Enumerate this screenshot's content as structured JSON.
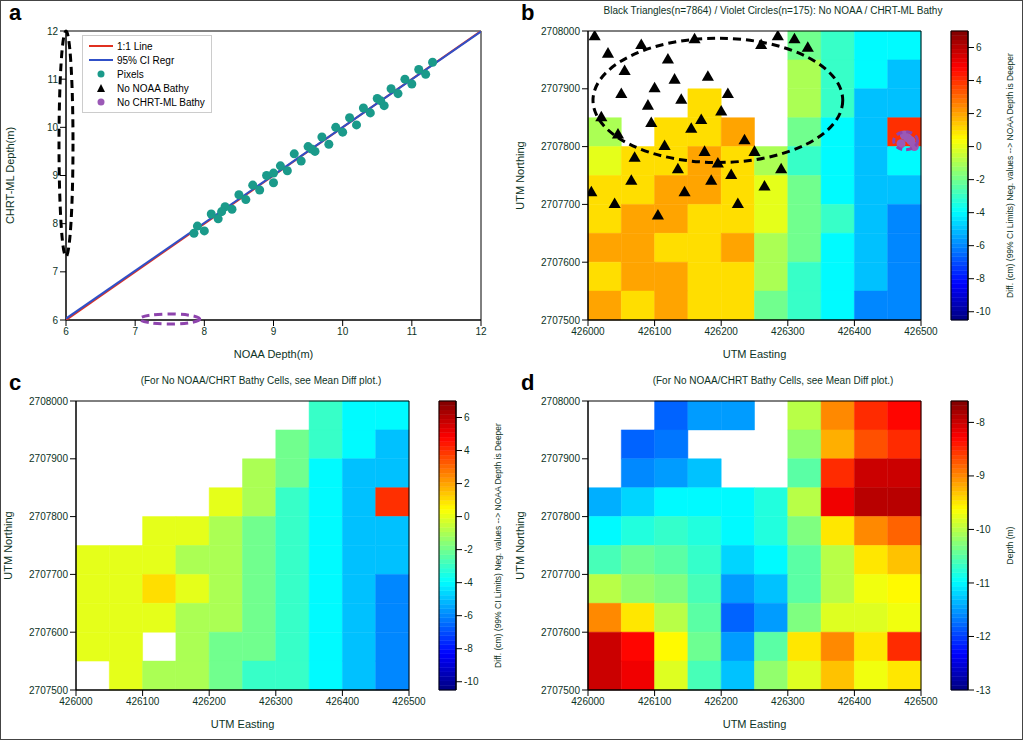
{
  "chart_data": [
    {
      "type": "scatter",
      "panel_label": "a",
      "x_label": "NOAA Depth(m)",
      "y_label": "CHRT-ML Depth(m)",
      "xlim": [
        6,
        12
      ],
      "ylim": [
        6,
        12
      ],
      "xticks": [
        6,
        7,
        8,
        9,
        10,
        11,
        12
      ],
      "yticks": [
        6,
        7,
        8,
        9,
        10,
        11,
        12
      ],
      "legend": "upper left",
      "series": [
        {
          "name": "1:1 Line",
          "type": "line",
          "color": "#e03020",
          "x": [
            6,
            12
          ],
          "values": [
            6,
            12
          ]
        },
        {
          "name": "95% CI Regr",
          "type": "line",
          "color": "#3050c8",
          "x": [
            6,
            12
          ],
          "values": [
            6.03,
            11.99
          ]
        },
        {
          "name": "Pixels",
          "type": "scatter",
          "marker": "circle",
          "color": "#1a9a8a",
          "x": [
            7.85,
            7.9,
            8.0,
            8.1,
            8.2,
            8.3,
            8.4,
            8.5,
            8.6,
            8.7,
            8.8,
            8.9,
            9.0,
            9.1,
            9.2,
            9.3,
            9.4,
            9.5,
            9.6,
            9.7,
            9.8,
            9.9,
            10.0,
            10.1,
            10.2,
            10.3,
            10.4,
            10.5,
            10.6,
            10.7,
            10.8,
            10.9,
            11.0,
            11.1,
            11.2,
            11.3,
            8.25,
            9.55,
            10.55,
            9.0
          ],
          "values": [
            7.8,
            7.95,
            7.85,
            8.2,
            8.1,
            8.35,
            8.3,
            8.6,
            8.5,
            8.8,
            8.7,
            9.0,
            8.85,
            9.2,
            9.1,
            9.45,
            9.3,
            9.6,
            9.5,
            9.8,
            9.65,
            10.0,
            9.9,
            10.2,
            10.05,
            10.4,
            10.3,
            10.6,
            10.45,
            10.8,
            10.7,
            11.0,
            10.9,
            11.2,
            11.1,
            11.35,
            8.25,
            9.55,
            10.55,
            9.05
          ]
        },
        {
          "name": "No NOAA Bathy",
          "type": "scatter",
          "marker": "triangle",
          "color": "#000000",
          "x": [],
          "values": []
        },
        {
          "name": "No CHRT-ML Bathy",
          "type": "scatter",
          "marker": "circle",
          "color": "#9b59b6",
          "x": [],
          "values": []
        }
      ]
    },
    {
      "type": "heatmap",
      "panel_label": "b",
      "title": "Black Triangles(n=7864) / Violet Circles(n=175): No NOAA / CHRT-ML Bathy",
      "x_label": "UTM Easting",
      "y_label": "UTM Northing",
      "xlim": [
        426000,
        426500
      ],
      "ylim": [
        2707500,
        2708000
      ],
      "xticks": [
        426000,
        426100,
        426200,
        426300,
        426400,
        426500
      ],
      "yticks": [
        2707500,
        2707600,
        2707700,
        2707800,
        2707900,
        2708000
      ],
      "cells": [
        [
          null,
          null,
          null,
          null,
          null,
          null,
          -2,
          -3,
          -4,
          -4
        ],
        [
          null,
          null,
          null,
          null,
          null,
          null,
          -1,
          -3,
          -4,
          -5
        ],
        [
          null,
          null,
          null,
          1,
          null,
          null,
          -1,
          -3,
          -5,
          -5
        ],
        [
          -1,
          null,
          1,
          1,
          2,
          null,
          -2,
          -4,
          -5,
          4
        ],
        [
          0,
          1,
          1,
          2,
          1,
          -1,
          -3,
          -4,
          -5,
          -4
        ],
        [
          1,
          1,
          2,
          2,
          1,
          0,
          -2,
          -4,
          -5,
          -5
        ],
        [
          1,
          2,
          2,
          1,
          1,
          0,
          -2,
          -3,
          -5,
          -6
        ],
        [
          2,
          2,
          1,
          1,
          2,
          -1,
          -2,
          -4,
          -5,
          -6
        ],
        [
          1,
          2,
          2,
          1,
          1,
          -1,
          -3,
          -4,
          -5,
          -6
        ],
        [
          2,
          1,
          2,
          1,
          1,
          -2,
          -3,
          -4,
          -6,
          -6
        ]
      ],
      "colorbar": {
        "label": "Diff. (cm) (99% CI Limits)  Neg. values --> NOAA Depth is Deeper",
        "range": [
          -10.5,
          7
        ],
        "ticks": [
          -10,
          -8,
          -6,
          -4,
          -2,
          0,
          2,
          4,
          6
        ]
      },
      "markers": [
        {
          "marker": "triangle",
          "color": "#000000",
          "x": [
            426010,
            426030,
            426055,
            426080,
            426100,
            426120,
            426140,
            426160,
            426180,
            426200,
            426020,
            426045,
            426070,
            426095,
            426115,
            426135,
            426155,
            426175,
            426195,
            426215,
            426235,
            426260,
            426285,
            426310,
            426330,
            426050,
            426090,
            426130,
            426170,
            426210,
            426250,
            426290,
            426005,
            426040,
            426065,
            426105,
            426145,
            426185,
            426225,
            426265
          ],
          "y": [
            2707990,
            2707960,
            2707930,
            2707975,
            2707900,
            2707950,
            2707880,
            2707985,
            2707920,
            2707860,
            2707850,
            2707820,
            2707780,
            2707840,
            2707800,
            2707760,
            2707830,
            2707790,
            2707770,
            2707750,
            2707810,
            2707975,
            2707990,
            2707985,
            2707970,
            2707890,
            2707870,
            2707915,
            2707845,
            2707890,
            2707790,
            2707760,
            2707720,
            2707700,
            2707740,
            2707680,
            2707720,
            2707740,
            2707700,
            2707730
          ]
        },
        {
          "marker": "circle",
          "color": "#9b59b6",
          "x": [
            426470,
            426480,
            426490,
            426475,
            426485
          ],
          "y": [
            2707805,
            2707815,
            2707800,
            2707820,
            2707810
          ]
        }
      ]
    },
    {
      "type": "heatmap",
      "panel_label": "c",
      "title": "(For No NOAA/CHRT Bathy Cells, see Mean Diff plot.)",
      "x_label": "UTM Easting",
      "y_label": "UTM Northing",
      "xlim": [
        426000,
        426500
      ],
      "ylim": [
        2707500,
        2708000
      ],
      "xticks": [
        426000,
        426100,
        426200,
        426300,
        426400,
        426500
      ],
      "yticks": [
        2707500,
        2707600,
        2707700,
        2707800,
        2707900,
        2708000
      ],
      "cells": [
        [
          null,
          null,
          null,
          null,
          null,
          null,
          null,
          -3,
          -4,
          -4
        ],
        [
          null,
          null,
          null,
          null,
          null,
          null,
          -2,
          -3,
          -4,
          -5
        ],
        [
          null,
          null,
          null,
          null,
          null,
          -1,
          -2,
          -4,
          -5,
          -5
        ],
        [
          null,
          null,
          null,
          null,
          0,
          -1,
          -3,
          -4,
          -5,
          4
        ],
        [
          null,
          null,
          0,
          0,
          -1,
          -2,
          -3,
          -4,
          -5,
          -5
        ],
        [
          0,
          0,
          0,
          -1,
          -1,
          -2,
          -3,
          -4,
          -5,
          -5
        ],
        [
          0,
          0,
          1,
          0,
          -1,
          -2,
          -3,
          -4,
          -5,
          -6
        ],
        [
          0,
          0,
          0,
          -1,
          -1,
          -2,
          -3,
          -4,
          -5,
          -6
        ],
        [
          0,
          0,
          null,
          -1,
          -2,
          -2,
          -3,
          -4,
          -5,
          -6
        ],
        [
          null,
          0,
          -1,
          -1,
          -2,
          -3,
          -3,
          -4,
          -5,
          -6
        ]
      ],
      "colorbar": {
        "label": "Diff. (cm) (99% CI Limits)  Neg. values --> NOAA Depth is Deeper",
        "range": [
          -10.5,
          7
        ],
        "ticks": [
          -10,
          -8,
          -6,
          -4,
          -2,
          0,
          2,
          4,
          6
        ]
      }
    },
    {
      "type": "heatmap",
      "panel_label": "d",
      "title": "(For No NOAA/CHRT Bathy Cells, see Mean Diff plot.)",
      "x_label": "UTM Easting",
      "y_label": "UTM Northing",
      "xlim": [
        426000,
        426500
      ],
      "ylim": [
        2707500,
        2708000
      ],
      "xticks": [
        426000,
        426100,
        426200,
        426300,
        426400,
        426500
      ],
      "yticks": [
        2707500,
        2707600,
        2707700,
        2707800,
        2707900,
        2708000
      ],
      "cells": [
        [
          null,
          null,
          -11.8,
          -11.5,
          -11.5,
          null,
          -10,
          -9,
          -8.5,
          -8.3
        ],
        [
          null,
          -11.8,
          -11.7,
          null,
          null,
          null,
          -10.2,
          -9.2,
          -8.7,
          -8.5
        ],
        [
          null,
          -11.6,
          -11.5,
          -11.3,
          null,
          null,
          -10.5,
          -8.5,
          -8,
          -8
        ],
        [
          -11.4,
          -11.2,
          -11,
          -11,
          -11,
          -10.8,
          -10,
          -8.2,
          -7.9,
          -7.9
        ],
        [
          -11,
          -10.8,
          -10.7,
          -10.8,
          -11,
          -10.8,
          -10.3,
          -9.5,
          -9,
          -8.8
        ],
        [
          -10.6,
          -10.4,
          -10.5,
          -10.7,
          -11.2,
          -11,
          -10.5,
          -10,
          -9.5,
          -9.3
        ],
        [
          -10,
          -10.2,
          -10.3,
          -10.6,
          -11.5,
          -11.3,
          -10.5,
          -10,
          -9.7,
          -9.6
        ],
        [
          -9,
          -9.5,
          -10,
          -10.5,
          -11.8,
          -11.5,
          -10.3,
          -9.8,
          -9.8,
          -9.7
        ],
        [
          -8,
          -8.3,
          -9.6,
          -10.4,
          -11.5,
          -10.5,
          -9.5,
          -9,
          -9.5,
          -8.5
        ],
        [
          -8,
          -8.2,
          -9.8,
          -10.6,
          -11.3,
          -10.2,
          -9.8,
          -9.3,
          -9.7,
          -9.5
        ]
      ],
      "colorbar": {
        "label": "Depth (m)",
        "range": [
          -13,
          -7.6
        ],
        "ticks": [
          -13,
          -12,
          -11,
          -10,
          -9,
          -8
        ]
      }
    }
  ]
}
